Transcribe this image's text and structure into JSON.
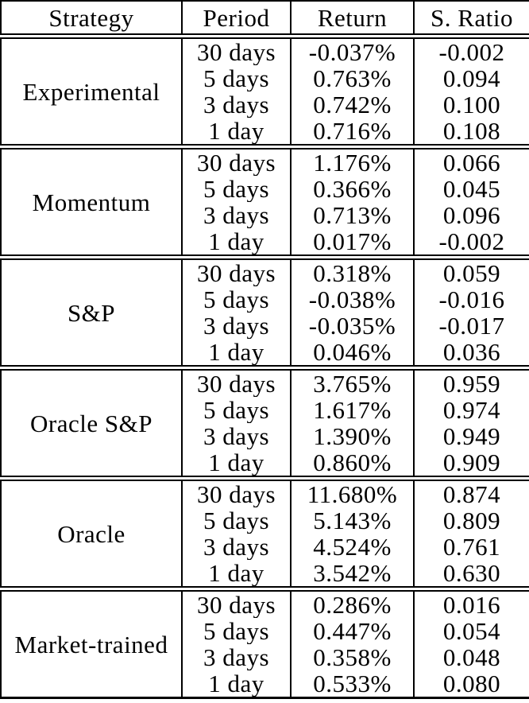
{
  "table": {
    "headers": [
      "Strategy",
      "Period",
      "Return",
      "S. Ratio"
    ],
    "groups": [
      {
        "strategy": "Experimental",
        "rows": [
          {
            "period": "30 days",
            "return": "-0.037%",
            "sratio": "-0.002"
          },
          {
            "period": "5 days",
            "return": "0.763%",
            "sratio": "0.094"
          },
          {
            "period": "3 days",
            "return": "0.742%",
            "sratio": "0.100"
          },
          {
            "period": "1 day",
            "return": "0.716%",
            "sratio": "0.108"
          }
        ]
      },
      {
        "strategy": "Momentum",
        "rows": [
          {
            "period": "30 days",
            "return": "1.176%",
            "sratio": "0.066"
          },
          {
            "period": "5 days",
            "return": "0.366%",
            "sratio": "0.045"
          },
          {
            "period": "3 days",
            "return": "0.713%",
            "sratio": "0.096"
          },
          {
            "period": "1 day",
            "return": "0.017%",
            "sratio": "-0.002"
          }
        ]
      },
      {
        "strategy": "S&P",
        "rows": [
          {
            "period": "30 days",
            "return": "0.318%",
            "sratio": "0.059"
          },
          {
            "period": "5 days",
            "return": "-0.038%",
            "sratio": "-0.016"
          },
          {
            "period": "3 days",
            "return": "-0.035%",
            "sratio": "-0.017"
          },
          {
            "period": "1 day",
            "return": "0.046%",
            "sratio": "0.036"
          }
        ]
      },
      {
        "strategy": "Oracle S&P",
        "rows": [
          {
            "period": "30 days",
            "return": "3.765%",
            "sratio": "0.959"
          },
          {
            "period": "5 days",
            "return": "1.617%",
            "sratio": "0.974"
          },
          {
            "period": "3 days",
            "return": "1.390%",
            "sratio": "0.949"
          },
          {
            "period": "1 day",
            "return": "0.860%",
            "sratio": "0.909"
          }
        ]
      },
      {
        "strategy": "Oracle",
        "rows": [
          {
            "period": "30 days",
            "return": "11.680%",
            "sratio": "0.874"
          },
          {
            "period": "5 days",
            "return": "5.143%",
            "sratio": "0.809"
          },
          {
            "period": "3 days",
            "return": "4.524%",
            "sratio": "0.761"
          },
          {
            "period": "1 day",
            "return": "3.542%",
            "sratio": "0.630"
          }
        ]
      },
      {
        "strategy": "Market-trained",
        "rows": [
          {
            "period": "30 days",
            "return": "0.286%",
            "sratio": "0.016"
          },
          {
            "period": "5 days",
            "return": "0.447%",
            "sratio": "0.054"
          },
          {
            "period": "3 days",
            "return": "0.358%",
            "sratio": "0.048"
          },
          {
            "period": "1 day",
            "return": "0.533%",
            "sratio": "0.080"
          }
        ]
      }
    ]
  },
  "colors": {
    "text": "#000000",
    "background": "#ffffff",
    "border": "#000000"
  }
}
